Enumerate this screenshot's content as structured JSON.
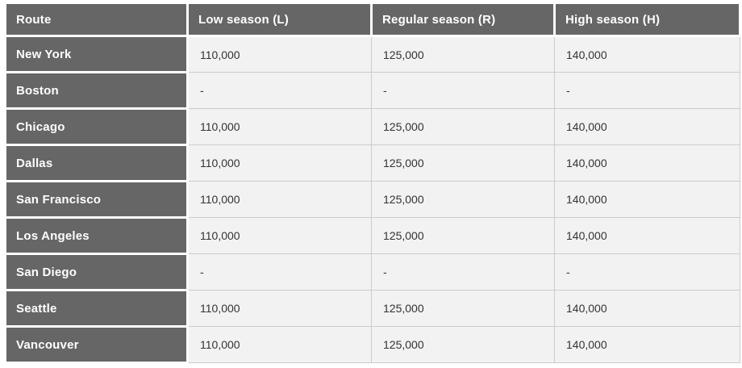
{
  "table": {
    "columns": [
      "Route",
      "Low season (L)",
      "Regular season (R)",
      "High season (H)"
    ],
    "rows": [
      {
        "route": "New York",
        "low": "110,000",
        "regular": "125,000",
        "high": "140,000"
      },
      {
        "route": "Boston",
        "low": "-",
        "regular": "-",
        "high": "-"
      },
      {
        "route": "Chicago",
        "low": "110,000",
        "regular": "125,000",
        "high": "140,000"
      },
      {
        "route": "Dallas",
        "low": "110,000",
        "regular": "125,000",
        "high": "140,000"
      },
      {
        "route": "San Francisco",
        "low": "110,000",
        "regular": "125,000",
        "high": "140,000"
      },
      {
        "route": "Los Angeles",
        "low": "110,000",
        "regular": "125,000",
        "high": "140,000"
      },
      {
        "route": "San Diego",
        "low": "-",
        "regular": "-",
        "high": "-"
      },
      {
        "route": "Seattle",
        "low": "110,000",
        "regular": "125,000",
        "high": "140,000"
      },
      {
        "route": "Vancouver",
        "low": "110,000",
        "regular": "125,000",
        "high": "140,000"
      }
    ]
  },
  "colors": {
    "header_bg": "#666666",
    "header_text": "#ffffff",
    "cell_bg": "#f2f2f2",
    "cell_border": "#cccccc",
    "cell_text": "#333333",
    "divider": "#ffffff"
  }
}
